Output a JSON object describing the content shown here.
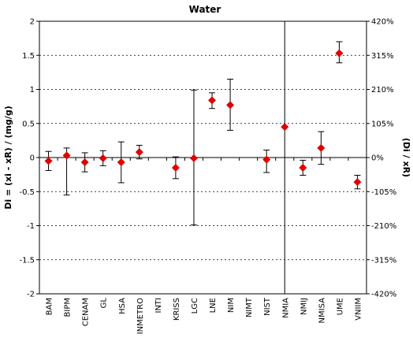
{
  "chart_data": {
    "type": "scatter",
    "title": "Water",
    "ylabel_left": "Di = (xi - xR) / (mg/g)",
    "ylabel_right": "(Di / xR)",
    "ylim": [
      -2,
      2
    ],
    "y_ticks_left": [
      "2",
      "1.5",
      "1",
      "0.5",
      "0",
      "-0.5",
      "-1",
      "-1.5",
      "-2"
    ],
    "y_ticks_right": [
      "420%",
      "315%",
      "210%",
      "105%",
      "0%",
      "-105%",
      "-210%",
      "-315%",
      "-420%"
    ],
    "y_tick_values": [
      2,
      1.5,
      1,
      0.5,
      0,
      -0.5,
      -1,
      -1.5,
      -2
    ],
    "grid": true,
    "reference_line_category": "NMIA",
    "marker_color": "#e00000",
    "categories": [
      "BAM",
      "BIPM",
      "CENAM",
      "GL",
      "HSA",
      "INMETRO",
      "INTI",
      "KRISS",
      "LGC",
      "LNE",
      "NIM",
      "NIMT",
      "NIST",
      "NMIA",
      "NMIJ",
      "NMISA",
      "UME",
      "VNIIM"
    ],
    "series": [
      {
        "values": [
          -0.05,
          0.03,
          -0.07,
          -0.01,
          -0.07,
          0.08,
          null,
          -0.15,
          -0.01,
          0.84,
          0.77,
          null,
          -0.03,
          0.45,
          -0.15,
          0.14,
          1.53,
          -0.36
        ],
        "err_low": [
          0.14,
          0.58,
          0.14,
          0.11,
          0.3,
          0.1,
          null,
          0.16,
          0.98,
          0.12,
          0.37,
          null,
          0.19,
          null,
          0.11,
          0.24,
          0.14,
          0.1
        ],
        "err_high": [
          0.14,
          0.11,
          0.14,
          0.11,
          0.3,
          0.1,
          null,
          0.16,
          1.0,
          0.11,
          0.38,
          null,
          0.14,
          null,
          0.11,
          0.24,
          0.17,
          0.1
        ]
      }
    ]
  }
}
